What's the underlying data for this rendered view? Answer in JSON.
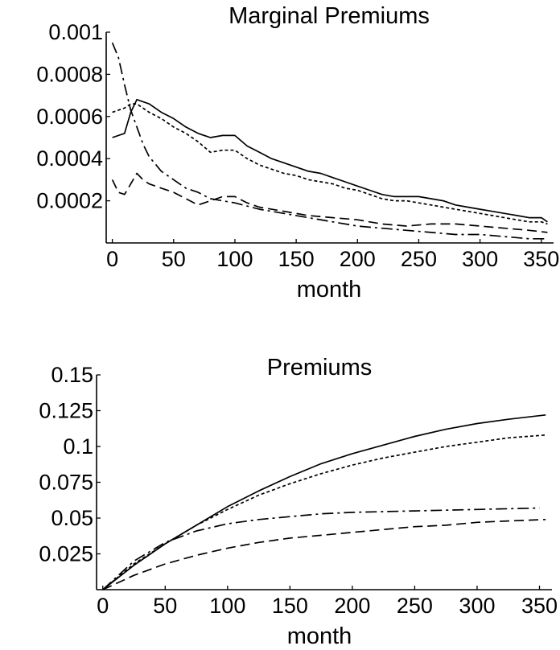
{
  "chart_data": [
    {
      "type": "line",
      "title": "Marginal Premiums",
      "xlabel": "month",
      "ylabel": "",
      "xlim": [
        -5,
        360
      ],
      "ylim": [
        0,
        0.001
      ],
      "xticks": [
        0,
        50,
        100,
        150,
        200,
        250,
        300,
        350
      ],
      "xtick_labels": [
        "0",
        "50",
        "100",
        "150",
        "200",
        "250",
        "300",
        "350"
      ],
      "yticks": [
        0.0002,
        0.0004,
        0.0006,
        0.0008,
        0.001
      ],
      "ytick_labels": [
        "0.0002",
        "0.0004",
        "0.0006",
        "0.0008",
        "0.001"
      ],
      "grid": false,
      "series": [
        {
          "dash": "solid",
          "x": [
            0,
            10,
            15,
            20,
            30,
            40,
            50,
            60,
            70,
            80,
            90,
            100,
            110,
            120,
            130,
            140,
            150,
            160,
            170,
            180,
            190,
            200,
            210,
            220,
            230,
            240,
            250,
            260,
            270,
            280,
            290,
            300,
            310,
            320,
            330,
            340,
            350,
            355
          ],
          "y": [
            0.0005,
            0.00052,
            0.00062,
            0.00068,
            0.00066,
            0.00062,
            0.00059,
            0.00055,
            0.00052,
            0.0005,
            0.00051,
            0.00051,
            0.00046,
            0.00043,
            0.0004,
            0.00038,
            0.00036,
            0.00034,
            0.00033,
            0.00031,
            0.00029,
            0.00027,
            0.00025,
            0.00023,
            0.00022,
            0.00022,
            0.00022,
            0.00021,
            0.0002,
            0.00018,
            0.00017,
            0.00016,
            0.00015,
            0.00014,
            0.00013,
            0.00012,
            0.00012,
            0.0001
          ]
        },
        {
          "dash": "dotted",
          "x": [
            0,
            10,
            15,
            20,
            30,
            40,
            50,
            60,
            70,
            80,
            90,
            100,
            110,
            120,
            130,
            140,
            150,
            160,
            170,
            180,
            190,
            200,
            210,
            220,
            230,
            240,
            250,
            260,
            270,
            280,
            290,
            300,
            310,
            320,
            330,
            340,
            350,
            355
          ],
          "y": [
            0.00062,
            0.00064,
            0.00066,
            0.00066,
            0.00062,
            0.00059,
            0.00055,
            0.00052,
            0.00048,
            0.00043,
            0.00044,
            0.00044,
            0.0004,
            0.00037,
            0.00035,
            0.00033,
            0.00032,
            0.0003,
            0.00029,
            0.00028,
            0.00026,
            0.00025,
            0.00023,
            0.00021,
            0.0002,
            0.0002,
            0.00019,
            0.00018,
            0.00017,
            0.00016,
            0.00015,
            0.00014,
            0.00013,
            0.00012,
            0.00011,
            0.0001,
            0.0001,
            9e-05
          ]
        },
        {
          "dash": "dash-dot",
          "x": [
            0,
            5,
            10,
            15,
            20,
            25,
            30,
            40,
            50,
            60,
            70,
            80,
            90,
            100,
            120,
            140,
            160,
            180,
            200,
            220,
            240,
            260,
            280,
            300,
            320,
            340,
            355
          ],
          "y": [
            0.00095,
            0.00088,
            0.00075,
            0.00063,
            0.00055,
            0.00047,
            0.00041,
            0.00034,
            0.0003,
            0.00026,
            0.00024,
            0.00021,
            0.0002,
            0.00019,
            0.00016,
            0.00014,
            0.00012,
            0.0001,
            8e-05,
            7e-05,
            6e-05,
            5e-05,
            4e-05,
            4e-05,
            3e-05,
            2e-05,
            2e-05
          ]
        },
        {
          "dash": "dashed",
          "x": [
            0,
            5,
            10,
            15,
            20,
            25,
            30,
            40,
            50,
            60,
            70,
            80,
            90,
            100,
            110,
            120,
            140,
            160,
            180,
            200,
            220,
            240,
            260,
            280,
            300,
            320,
            340,
            355
          ],
          "y": [
            0.0003,
            0.00024,
            0.00023,
            0.00028,
            0.00033,
            0.0003,
            0.00028,
            0.00026,
            0.00024,
            0.00021,
            0.00018,
            0.0002,
            0.00022,
            0.00022,
            0.00019,
            0.00017,
            0.00015,
            0.00013,
            0.00012,
            0.00011,
            9e-05,
            8e-05,
            9e-05,
            9e-05,
            8e-05,
            7e-05,
            6e-05,
            5e-05
          ]
        }
      ]
    },
    {
      "type": "line",
      "title": "Premiums",
      "xlabel": "month",
      "ylabel": "",
      "xlim": [
        -5,
        360
      ],
      "ylim": [
        0,
        0.15
      ],
      "xticks": [
        0,
        50,
        100,
        150,
        200,
        250,
        300,
        350
      ],
      "xtick_labels": [
        "0",
        "50",
        "100",
        "150",
        "200",
        "250",
        "300",
        "350"
      ],
      "yticks": [
        0.025,
        0.05,
        0.075,
        0.1,
        0.125,
        0.15
      ],
      "ytick_labels": [
        "0.025",
        "0.05",
        "0.075",
        "0.1",
        "0.125",
        "0.15"
      ],
      "grid": false,
      "series": [
        {
          "dash": "solid",
          "x": [
            0,
            25,
            50,
            75,
            100,
            125,
            150,
            175,
            200,
            225,
            250,
            275,
            300,
            325,
            355
          ],
          "y": [
            0,
            0.017,
            0.032,
            0.045,
            0.058,
            0.069,
            0.079,
            0.088,
            0.095,
            0.101,
            0.107,
            0.112,
            0.116,
            0.119,
            0.122
          ]
        },
        {
          "dash": "dotted",
          "x": [
            0,
            25,
            50,
            75,
            100,
            125,
            150,
            175,
            200,
            225,
            250,
            275,
            300,
            325,
            355
          ],
          "y": [
            0,
            0.018,
            0.032,
            0.045,
            0.056,
            0.066,
            0.074,
            0.081,
            0.087,
            0.092,
            0.096,
            0.1,
            0.103,
            0.106,
            0.108
          ]
        },
        {
          "dash": "dash-dot",
          "x": [
            0,
            25,
            50,
            75,
            100,
            125,
            150,
            175,
            200,
            225,
            250,
            275,
            300,
            325,
            350
          ],
          "y": [
            0,
            0.02,
            0.033,
            0.041,
            0.046,
            0.049,
            0.051,
            0.053,
            0.054,
            0.0545,
            0.055,
            0.0555,
            0.056,
            0.0565,
            0.057
          ]
        },
        {
          "dash": "dashed",
          "x": [
            0,
            25,
            50,
            75,
            100,
            125,
            150,
            175,
            200,
            225,
            250,
            275,
            300,
            325,
            355
          ],
          "y": [
            0,
            0.01,
            0.018,
            0.024,
            0.029,
            0.033,
            0.036,
            0.038,
            0.04,
            0.042,
            0.044,
            0.045,
            0.047,
            0.048,
            0.049
          ]
        }
      ]
    }
  ]
}
